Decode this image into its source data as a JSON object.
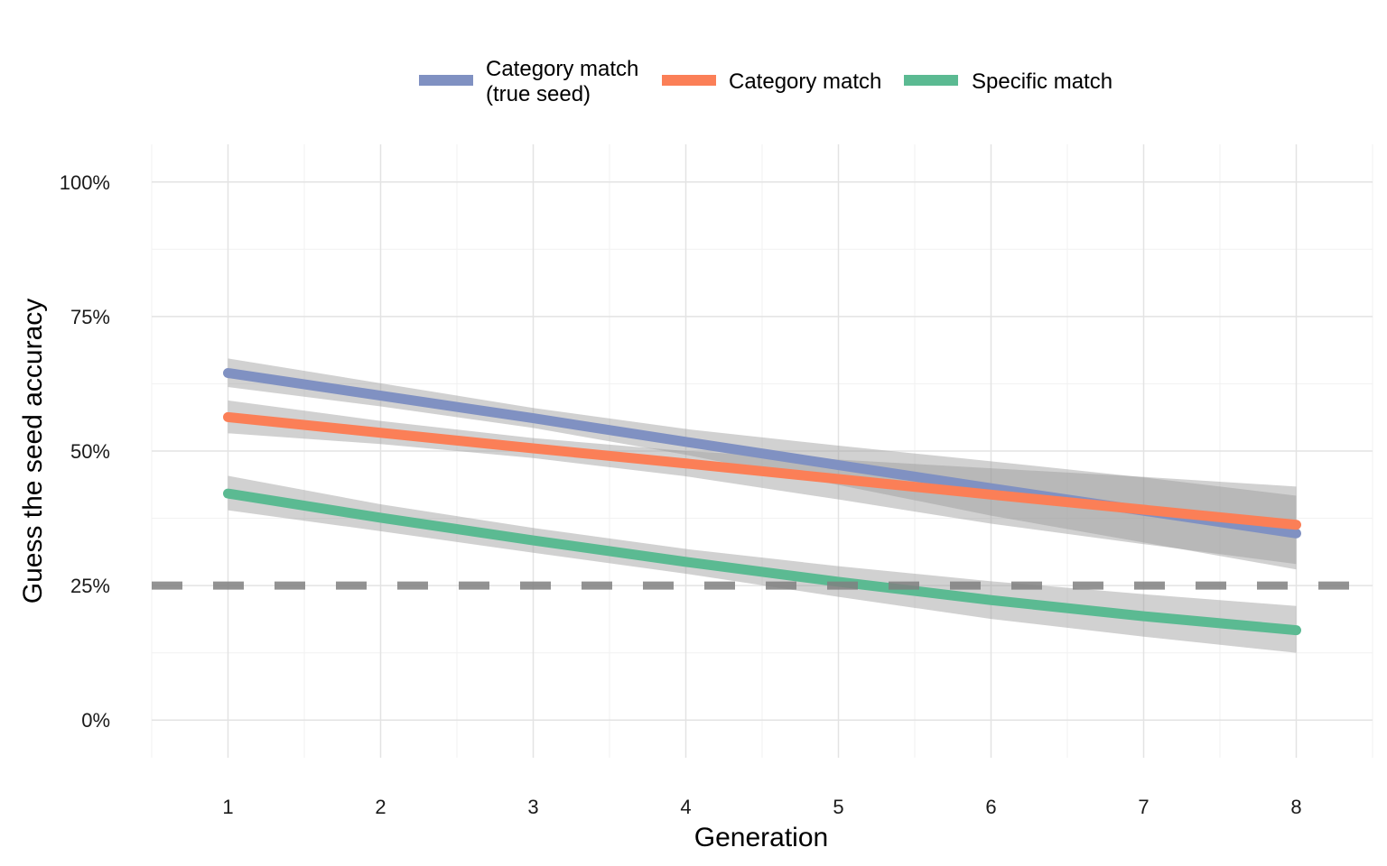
{
  "chart_data": {
    "type": "line",
    "title": "",
    "xlabel": "Generation",
    "ylabel": "Guess the seed accuracy",
    "x": [
      1,
      2,
      3,
      4,
      5,
      6,
      7,
      8
    ],
    "xlim": [
      0.5,
      8.5
    ],
    "ylim": [
      -0.07,
      1.07
    ],
    "x_ticks": [
      1,
      2,
      3,
      4,
      5,
      6,
      7,
      8
    ],
    "x_tick_labels": [
      "1",
      "2",
      "3",
      "4",
      "5",
      "6",
      "7",
      "8"
    ],
    "y_ticks": [
      0,
      0.25,
      0.5,
      0.75,
      1.0
    ],
    "y_tick_labels": [
      "0%",
      "25%",
      "50%",
      "75%",
      "100%"
    ],
    "grid": true,
    "legend_position": "top",
    "reference_line": {
      "y": 0.25,
      "style": "dashed",
      "color": "#808080"
    },
    "series": [
      {
        "name": "Category match (true seed)",
        "legend_lines": [
          "Category match",
          "(true seed)"
        ],
        "color": "#8091C2",
        "values": [
          0.645,
          0.603,
          0.561,
          0.517,
          0.474,
          0.431,
          0.389,
          0.347
        ],
        "lower": [
          0.619,
          0.583,
          0.543,
          0.493,
          0.437,
          0.38,
          0.33,
          0.28
        ],
        "upper": [
          0.672,
          0.626,
          0.58,
          0.541,
          0.51,
          0.481,
          0.451,
          0.417
        ]
      },
      {
        "name": "Category match",
        "legend_lines": [
          "Category match"
        ],
        "color": "#FB7F57",
        "values": [
          0.563,
          0.534,
          0.505,
          0.477,
          0.448,
          0.419,
          0.391,
          0.363
        ],
        "lower": [
          0.533,
          0.513,
          0.487,
          0.453,
          0.41,
          0.365,
          0.327,
          0.29
        ],
        "upper": [
          0.594,
          0.556,
          0.524,
          0.5,
          0.484,
          0.468,
          0.452,
          0.434
        ]
      },
      {
        "name": "Specific match",
        "legend_lines": [
          "Specific match"
        ],
        "color": "#5BBA92",
        "values": [
          0.421,
          0.376,
          0.334,
          0.294,
          0.257,
          0.223,
          0.193,
          0.167
        ],
        "lower": [
          0.39,
          0.351,
          0.311,
          0.272,
          0.229,
          0.188,
          0.155,
          0.125
        ],
        "upper": [
          0.454,
          0.401,
          0.357,
          0.318,
          0.286,
          0.258,
          0.234,
          0.212
        ]
      }
    ]
  }
}
